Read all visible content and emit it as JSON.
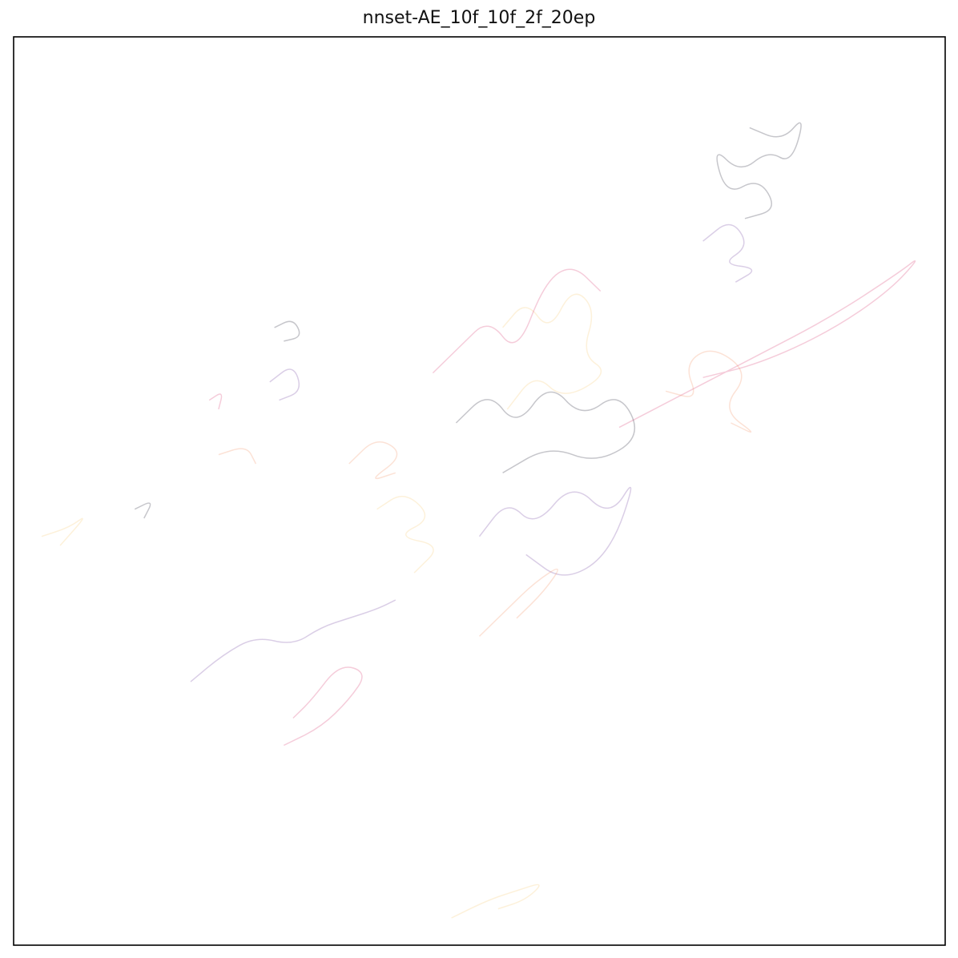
{
  "chart_data": {
    "type": "line",
    "title": "nnset-AE_10f_10f_2f_20ep",
    "xlabel": "",
    "ylabel": "",
    "axes_ticks": "none",
    "grid": false,
    "legend": "none",
    "line_alpha": 0.25,
    "series_colors": [
      "#1a1a2e",
      "#6a3d9a",
      "#d6336c",
      "#f28c5a",
      "#f7c86a"
    ],
    "xlim": [
      -1.0,
      1.0
    ],
    "ylim": [
      -1.0,
      1.0
    ],
    "series": [
      {
        "cluster": "top-right-loop",
        "values": [
          [
            0.58,
            0.8
          ],
          [
            0.65,
            0.77
          ],
          [
            0.7,
            0.83
          ],
          [
            0.67,
            0.72
          ],
          [
            0.62,
            0.75
          ],
          [
            0.56,
            0.7
          ],
          [
            0.5,
            0.76
          ],
          [
            0.53,
            0.65
          ],
          [
            0.6,
            0.69
          ],
          [
            0.64,
            0.62
          ],
          [
            0.57,
            0.6
          ]
        ]
      },
      {
        "cluster": "upper-right-small",
        "values": [
          [
            0.48,
            0.55
          ],
          [
            0.54,
            0.6
          ],
          [
            0.58,
            0.54
          ],
          [
            0.52,
            0.5
          ],
          [
            0.6,
            0.49
          ],
          [
            0.55,
            0.46
          ]
        ]
      },
      {
        "cluster": "right-long-loop",
        "values": [
          [
            0.3,
            0.14
          ],
          [
            0.45,
            0.22
          ],
          [
            0.6,
            0.3
          ],
          [
            0.75,
            0.38
          ],
          [
            0.9,
            0.48
          ],
          [
            0.95,
            0.52
          ],
          [
            0.88,
            0.44
          ],
          [
            0.75,
            0.35
          ],
          [
            0.6,
            0.28
          ],
          [
            0.48,
            0.25
          ]
        ]
      },
      {
        "cluster": "center-right",
        "values": [
          [
            0.4,
            0.22
          ],
          [
            0.47,
            0.2
          ],
          [
            0.44,
            0.28
          ],
          [
            0.5,
            0.32
          ],
          [
            0.58,
            0.26
          ],
          [
            0.52,
            0.18
          ],
          [
            0.6,
            0.12
          ],
          [
            0.54,
            0.15
          ]
        ]
      },
      {
        "cluster": "center-main-a",
        "values": [
          [
            0.05,
            0.36
          ],
          [
            0.1,
            0.42
          ],
          [
            0.15,
            0.35
          ],
          [
            0.2,
            0.45
          ],
          [
            0.25,
            0.4
          ],
          [
            0.22,
            0.3
          ],
          [
            0.28,
            0.26
          ],
          [
            0.18,
            0.2
          ],
          [
            0.12,
            0.26
          ],
          [
            0.06,
            0.18
          ]
        ]
      },
      {
        "cluster": "center-main-b",
        "values": [
          [
            -0.05,
            0.15
          ],
          [
            0.02,
            0.22
          ],
          [
            0.08,
            0.14
          ],
          [
            0.15,
            0.24
          ],
          [
            0.22,
            0.16
          ],
          [
            0.3,
            0.22
          ],
          [
            0.35,
            0.12
          ],
          [
            0.25,
            0.06
          ],
          [
            0.15,
            0.1
          ],
          [
            0.05,
            0.04
          ]
        ]
      },
      {
        "cluster": "center-down-sweep",
        "values": [
          [
            0.0,
            -0.1
          ],
          [
            0.06,
            -0.02
          ],
          [
            0.12,
            -0.08
          ],
          [
            0.2,
            0.02
          ],
          [
            0.28,
            -0.06
          ],
          [
            0.34,
            0.04
          ],
          [
            0.28,
            -0.14
          ],
          [
            0.18,
            -0.2
          ],
          [
            0.1,
            -0.14
          ]
        ]
      },
      {
        "cluster": "mid-diagonal",
        "values": [
          [
            -0.1,
            0.26
          ],
          [
            -0.04,
            0.32
          ],
          [
            0.02,
            0.38
          ],
          [
            0.08,
            0.3
          ],
          [
            0.14,
            0.46
          ],
          [
            0.2,
            0.5
          ],
          [
            0.26,
            0.44
          ]
        ]
      },
      {
        "cluster": "center-left-loop",
        "values": [
          [
            -0.28,
            0.06
          ],
          [
            -0.22,
            0.12
          ],
          [
            -0.16,
            0.08
          ],
          [
            -0.24,
            0.02
          ],
          [
            -0.18,
            0.04
          ]
        ]
      },
      {
        "cluster": "mid-cluster",
        "values": [
          [
            -0.22,
            -0.04
          ],
          [
            -0.16,
            0.0
          ],
          [
            -0.1,
            -0.06
          ],
          [
            -0.18,
            -0.1
          ],
          [
            -0.08,
            -0.12
          ],
          [
            -0.14,
            -0.18
          ]
        ]
      },
      {
        "cluster": "left-small-a",
        "values": [
          [
            -0.44,
            0.36
          ],
          [
            -0.4,
            0.38
          ],
          [
            -0.38,
            0.34
          ],
          [
            -0.42,
            0.33
          ]
        ]
      },
      {
        "cluster": "left-small-b",
        "values": [
          [
            -0.45,
            0.24
          ],
          [
            -0.4,
            0.28
          ],
          [
            -0.38,
            0.22
          ],
          [
            -0.43,
            0.2
          ]
        ]
      },
      {
        "cluster": "left-small-c",
        "values": [
          [
            -0.58,
            0.2
          ],
          [
            -0.55,
            0.22
          ],
          [
            -0.56,
            0.18
          ]
        ]
      },
      {
        "cluster": "left-small-d",
        "values": [
          [
            -0.56,
            0.08
          ],
          [
            -0.5,
            0.1
          ],
          [
            -0.48,
            0.06
          ]
        ]
      },
      {
        "cluster": "far-left",
        "values": [
          [
            -0.94,
            -0.1
          ],
          [
            -0.88,
            -0.08
          ],
          [
            -0.84,
            -0.05
          ],
          [
            -0.9,
            -0.12
          ]
        ]
      },
      {
        "cluster": "left-mid",
        "values": [
          [
            -0.74,
            -0.04
          ],
          [
            -0.7,
            -0.02
          ],
          [
            -0.72,
            -0.06
          ]
        ]
      },
      {
        "cluster": "lower-left-wave",
        "values": [
          [
            -0.62,
            -0.42
          ],
          [
            -0.55,
            -0.36
          ],
          [
            -0.48,
            -0.32
          ],
          [
            -0.4,
            -0.34
          ],
          [
            -0.34,
            -0.3
          ],
          [
            -0.28,
            -0.28
          ],
          [
            -0.22,
            -0.26
          ],
          [
            -0.18,
            -0.24
          ]
        ]
      },
      {
        "cluster": "lower-left-loop",
        "values": [
          [
            -0.42,
            -0.56
          ],
          [
            -0.34,
            -0.52
          ],
          [
            -0.28,
            -0.46
          ],
          [
            -0.24,
            -0.4
          ],
          [
            -0.3,
            -0.38
          ],
          [
            -0.36,
            -0.46
          ],
          [
            -0.4,
            -0.5
          ]
        ]
      },
      {
        "cluster": "center-lower-arc",
        "values": [
          [
            0.0,
            -0.32
          ],
          [
            0.06,
            -0.26
          ],
          [
            0.12,
            -0.2
          ],
          [
            0.18,
            -0.16
          ],
          [
            0.14,
            -0.22
          ],
          [
            0.08,
            -0.28
          ]
        ]
      },
      {
        "cluster": "bottom",
        "values": [
          [
            -0.06,
            -0.94
          ],
          [
            0.02,
            -0.9
          ],
          [
            0.08,
            -0.88
          ],
          [
            0.14,
            -0.86
          ],
          [
            0.1,
            -0.9
          ],
          [
            0.04,
            -0.92
          ]
        ]
      }
    ]
  }
}
